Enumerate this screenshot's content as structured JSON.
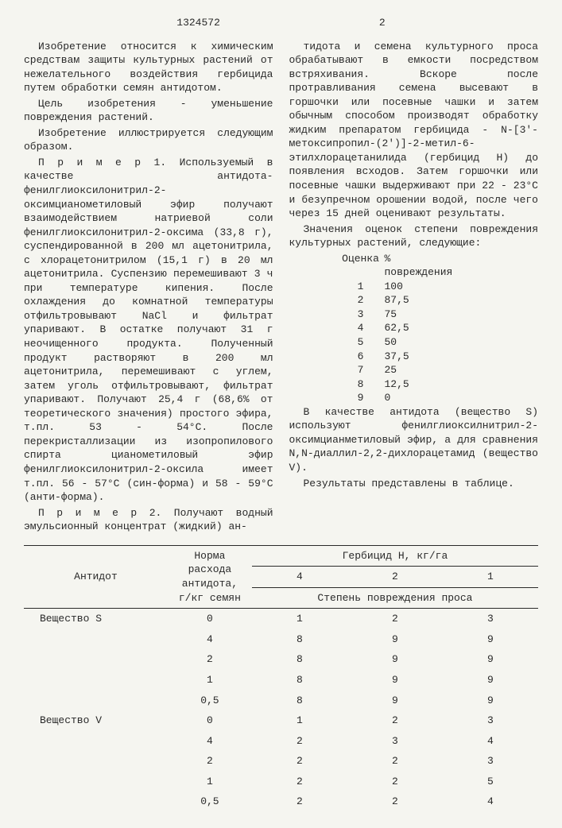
{
  "header": {
    "docnum": "1324572",
    "pagenum": "2"
  },
  "col1": {
    "p1": "Изобретение относится к химическим средствам защиты культурных растений от нежелательного воздействия гербицида путем обработки семян антидотом.",
    "p2": "Цель изобретения - уменьшение повреждения растений.",
    "p3": "Изобретение иллюстрируется следующим образом.",
    "p4": "П р и м е р 1. Используемый в качестве антидота-фенилглиоксилонитрил-2-оксимцианометиловый эфир получают взаимодействием натриевой соли фенилглиоксилонитрил-2-оксима (33,8 г), суспендированной в 200 мл ацетонитрила, с хлорацетонитрилом (15,1 г) в 20 мл ацетонитрила. Суспензию перемешивают 3 ч при температуре кипения. После охлаждения до комнатной температуры отфильтровывают NaCl и фильтрат упаривают. В остатке получают 31 г неочищенного продукта. Полученный продукт растворяют в 200 мл ацетонитрила, перемешивают с углем, затем уголь отфильтровывают, фильтрат упаривают. Получают 25,4 г (68,6% от теоретического значения) простого эфира, т.пл. 53 - 54°С. После перекристаллизации из изопропилового спирта цианометиловый эфир фенилглиоксилонитрил-2-оксила имеет т.пл. 56 - 57°С (син-форма) и 58 - 59°С (анти-форма).",
    "p5": "П р и м е р 2. Получают водный эмульсионный концентрат (жидкий) ан-"
  },
  "col2": {
    "p1": "тидота и семена культурного проса обрабатывают в емкости посредством встряхивания. Вскоре после протравливания семена высевают в горшочки или посевные чашки и затем обычным способом производят обработку жидким препаратом гербицида - N-[3'-метоксипропил-(2')]-2-метил-6-этилхлорацетанилида (гербицид Н) до появления всходов. Затем горшочки или посевные чашки выдерживают при 22 - 23°С и безупречном орошении водой, после чего через 15 дней оценивают результаты.",
    "p2": "Значения оценок степени повреждения культурных растений, следующие:",
    "rating_head": {
      "c1": "Оценка",
      "c2": "% повреждения"
    },
    "ratings": [
      [
        "1",
        "100"
      ],
      [
        "2",
        "87,5"
      ],
      [
        "3",
        "75"
      ],
      [
        "4",
        "62,5"
      ],
      [
        "5",
        "50"
      ],
      [
        "6",
        "37,5"
      ],
      [
        "7",
        "25"
      ],
      [
        "8",
        "12,5"
      ],
      [
        "9",
        "0"
      ]
    ],
    "p3": "В качестве антидота (вещество S) используют фенилглиоксилнитрил-2-оксимцианметиловый эфир, а для сравнения N,N-диаллил-2,2-дихлорацетамид (вещество V).",
    "p4": "Результаты представлены в таблице."
  },
  "table": {
    "h1": "Антидот",
    "h2": "Норма расхода антидота, г/кг семян",
    "h3": "Гербицид Н, кг/га",
    "h3a": "4",
    "h3b": "2",
    "h3c": "1",
    "h4": "Степень повреждения проса",
    "rows": [
      {
        "a": "Вещество S",
        "n": "0",
        "v": [
          "1",
          "2",
          "3"
        ]
      },
      {
        "a": "",
        "n": "4",
        "v": [
          "8",
          "9",
          "9"
        ]
      },
      {
        "a": "",
        "n": "2",
        "v": [
          "8",
          "9",
          "9"
        ]
      },
      {
        "a": "",
        "n": "1",
        "v": [
          "8",
          "9",
          "9"
        ]
      },
      {
        "a": "",
        "n": "0,5",
        "v": [
          "8",
          "9",
          "9"
        ]
      },
      {
        "a": "Вещество V",
        "n": "0",
        "v": [
          "1",
          "2",
          "3"
        ]
      },
      {
        "a": "",
        "n": "4",
        "v": [
          "2",
          "3",
          "4"
        ]
      },
      {
        "a": "",
        "n": "2",
        "v": [
          "2",
          "2",
          "3"
        ]
      },
      {
        "a": "",
        "n": "1",
        "v": [
          "2",
          "2",
          "5"
        ]
      },
      {
        "a": "",
        "n": "0,5",
        "v": [
          "2",
          "2",
          "4"
        ]
      }
    ]
  }
}
